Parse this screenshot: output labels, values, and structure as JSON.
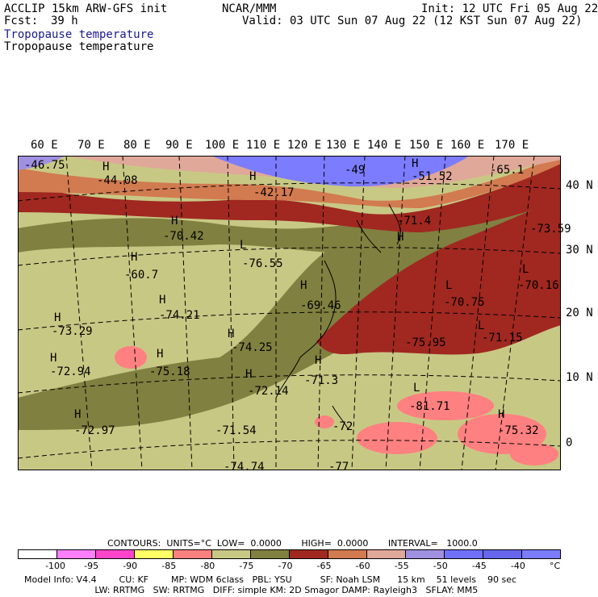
{
  "header": {
    "model": "ACCLIP 15km ARW-GFS init",
    "center": "NCAR/MMM",
    "init": "Init: 12 UTC Fri 05 Aug 22",
    "fcst_label": "Fcst:",
    "fcst_value": "39 h",
    "valid": "Valid: 03 UTC Sun 07 Aug 22 (12 KST Sun 07 Aug 22)",
    "title1": "Tropopause temperature",
    "title2": "Tropopause temperature"
  },
  "axes": {
    "longitudes": [
      "60 E",
      "70 E",
      "80 E",
      "90 E",
      "100 E",
      "110 E",
      "120 E",
      "130 E",
      "140 E",
      "150 E",
      "160 E",
      "170 E"
    ],
    "latitudes": [
      "40 N",
      "30 N",
      "20 N",
      "10 N",
      "0"
    ]
  },
  "map_labels": [
    {
      "text": "-46.75"
    },
    {
      "text": "H"
    },
    {
      "text": "-44.08"
    },
    {
      "text": "H"
    },
    {
      "text": "-42.17"
    },
    {
      "text": "-49"
    },
    {
      "text": "H"
    },
    {
      "text": "-51.52"
    },
    {
      "text": "-65.1"
    },
    {
      "text": "H"
    },
    {
      "text": "-70.42"
    },
    {
      "text": "L"
    },
    {
      "text": "-76.55"
    },
    {
      "text": "H"
    },
    {
      "text": "-60.7"
    },
    {
      "text": "-71.4"
    },
    {
      "text": "H"
    },
    {
      "text": "-73.59"
    },
    {
      "text": "H"
    },
    {
      "text": "-69.46"
    },
    {
      "text": "L"
    },
    {
      "text": "-70.16"
    },
    {
      "text": "L"
    },
    {
      "text": "-70.75"
    },
    {
      "text": "H"
    },
    {
      "text": "-74.21"
    },
    {
      "text": "H"
    },
    {
      "text": "-73.29"
    },
    {
      "text": "H"
    },
    {
      "text": "-74.25"
    },
    {
      "text": "-75.95"
    },
    {
      "text": "L"
    },
    {
      "text": "-71.15"
    },
    {
      "text": "H"
    },
    {
      "text": "-72.94"
    },
    {
      "text": "H"
    },
    {
      "text": "-75.18"
    },
    {
      "text": "H"
    },
    {
      "text": "-71.3"
    },
    {
      "text": "H"
    },
    {
      "text": "-72.14"
    },
    {
      "text": "L"
    },
    {
      "text": "-81.71"
    },
    {
      "text": "H"
    },
    {
      "text": "-72.97"
    },
    {
      "text": "-71.54"
    },
    {
      "text": "-72"
    },
    {
      "text": "H"
    },
    {
      "text": "-75.32"
    },
    {
      "text": "-74.74"
    },
    {
      "text": "-77"
    }
  ],
  "colorbar": {
    "colors": [
      "#ffffff",
      "#ff80ff",
      "#ff44cc",
      "#ffff66",
      "#ff8080",
      "#c8c885",
      "#808040",
      "#a02820",
      "#d27a50",
      "#e0a898",
      "#a090e0",
      "#7070ff",
      "#6666ee",
      "#7c7cff"
    ],
    "labels": [
      "-100",
      "-95",
      "-90",
      "-85",
      "-80",
      "-75",
      "-70",
      "-65",
      "-60",
      "-55",
      "-50",
      "-45",
      "-40",
      "°C"
    ]
  },
  "contours_line": "CONTOURS:  UNITS=°C  LOW=  0.0000       HIGH=  0.0000       INTERVAL=   1000.0",
  "footer_line1": "Model Info: V4.4        CU: KF        MP: WDM 6class   PBL: YSU          SF: Noah LSM      15 km    51 levels    90 sec",
  "footer_line2": "                         LW: RRTMG   SW: RRTMG   DIFF: simple KM: 2D Smagor DAMP: Rayleigh3   SFLAY: MM5"
}
